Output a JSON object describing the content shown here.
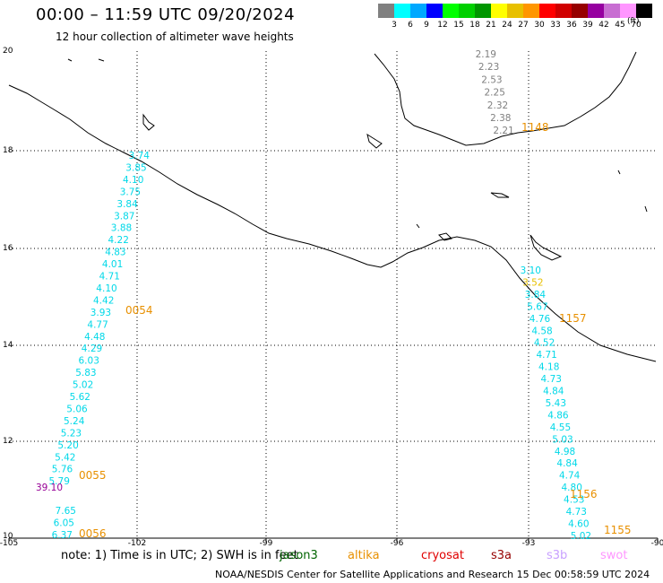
{
  "header": {
    "title": "00:00 – 11:59 UTC 09/20/2024",
    "subtitle": "12 hour collection of altimeter wave heights"
  },
  "color_scale": {
    "colors": [
      "#808080",
      "#00ffff",
      "#00a8ff",
      "#0000ff",
      "#00ff00",
      "#00d000",
      "#009600",
      "#ffff00",
      "#e8c000",
      "#ff9600",
      "#ff0000",
      "#d00000",
      "#960000",
      "#9600a0",
      "#c86ed2",
      "#ff96ff",
      "#000000"
    ],
    "labels": [
      "3",
      "6",
      "9",
      "12",
      "15",
      "18",
      "21",
      "24",
      "27",
      "30",
      "33",
      "36",
      "39",
      "42",
      "45",
      "70"
    ],
    "unit": "(ft)"
  },
  "axes": {
    "lat_ticks": [
      "20",
      "18",
      "16",
      "14",
      "12",
      "10"
    ],
    "lon_ticks": [
      "-105",
      "-102",
      "-99",
      "-96",
      "-93",
      "-90"
    ]
  },
  "map": {
    "tracks": [
      {
        "color": "#00d8e8",
        "values": [
          "3.74",
          "3.85",
          "4.10",
          "3.75",
          "3.84",
          "3.87",
          "3.88",
          "4.22",
          "4.83",
          "4.01",
          "4.71",
          "4.10",
          "4.42",
          "3.93",
          "4.77",
          "4.48",
          "4.29",
          "6.03",
          "5.83",
          "5.02",
          "5.62",
          "5.06",
          "5.24",
          "5.23",
          "5.20",
          "5.42",
          "5.76",
          "5.79"
        ]
      },
      {
        "color": "#00d8e8",
        "values": [
          "7.65",
          "6.05",
          "6.37"
        ]
      },
      {
        "color": "#808080",
        "values": [
          "2.19",
          "2.23",
          "2.53",
          "2.25",
          "2.32",
          "2.38",
          "2.21"
        ]
      },
      {
        "color": "#00d8e8",
        "values": [
          "3.10",
          "3.52",
          "3.84",
          "5.67",
          "4.76",
          "4.58",
          "4.52",
          "4.71",
          "4.18",
          "4.73",
          "4.84",
          "5.43",
          "4.86",
          "4.55",
          "5.03",
          "4.98",
          "4.84",
          "4.74",
          "4.80",
          "4.53",
          "4.73",
          "4.60",
          "5.02"
        ]
      }
    ],
    "special_value": {
      "text": "39.10",
      "color": "#960096"
    },
    "times": [
      "0054",
      "0055",
      "0056",
      "1148",
      "1157",
      "1156",
      "1155"
    ],
    "time_color": "#e89000"
  },
  "footer": {
    "note": "note: 1) Time is in UTC; 2) SWH is in feet",
    "legend": [
      {
        "name": "jason3",
        "color": "#006400"
      },
      {
        "name": "altika",
        "color": "#e89000"
      },
      {
        "name": "cryosat",
        "color": "#e00000"
      },
      {
        "name": "s3a",
        "color": "#960000"
      },
      {
        "name": "s3b",
        "color": "#c8a0ff"
      },
      {
        "name": "swot",
        "color": "#ff96ff"
      }
    ],
    "credit": "NOAA/NESDIS Center for Satellite Applications and Research   15 Dec 00:58:59 UTC 2024"
  }
}
